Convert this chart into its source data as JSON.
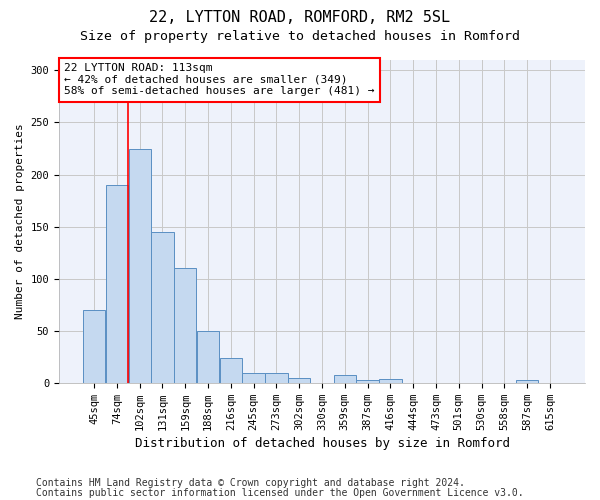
{
  "title1": "22, LYTTON ROAD, ROMFORD, RM2 5SL",
  "title2": "Size of property relative to detached houses in Romford",
  "xlabel": "Distribution of detached houses by size in Romford",
  "ylabel": "Number of detached properties",
  "categories": [
    "45sqm",
    "74sqm",
    "102sqm",
    "131sqm",
    "159sqm",
    "188sqm",
    "216sqm",
    "245sqm",
    "273sqm",
    "302sqm",
    "330sqm",
    "359sqm",
    "387sqm",
    "416sqm",
    "444sqm",
    "473sqm",
    "501sqm",
    "530sqm",
    "558sqm",
    "587sqm",
    "615sqm"
  ],
  "values": [
    70,
    190,
    225,
    145,
    110,
    50,
    24,
    9,
    9,
    5,
    0,
    8,
    3,
    4,
    0,
    0,
    0,
    0,
    0,
    3,
    0
  ],
  "bar_color": "#c5d9f0",
  "bar_edge_color": "#5a8fc3",
  "red_line_x": 1.5,
  "annotation_text": "22 LYTTON ROAD: 113sqm\n← 42% of detached houses are smaller (349)\n58% of semi-detached houses are larger (481) →",
  "annotation_box_color": "white",
  "annotation_box_edgecolor": "red",
  "red_line_color": "red",
  "ylim": [
    0,
    310
  ],
  "yticks": [
    0,
    50,
    100,
    150,
    200,
    250,
    300
  ],
  "grid_color": "#c8c8c8",
  "bg_color": "#eef2fb",
  "footer1": "Contains HM Land Registry data © Crown copyright and database right 2024.",
  "footer2": "Contains public sector information licensed under the Open Government Licence v3.0.",
  "title1_fontsize": 11,
  "title2_fontsize": 9.5,
  "xlabel_fontsize": 9,
  "ylabel_fontsize": 8,
  "tick_fontsize": 7.5,
  "footer_fontsize": 7,
  "annotation_fontsize": 8
}
